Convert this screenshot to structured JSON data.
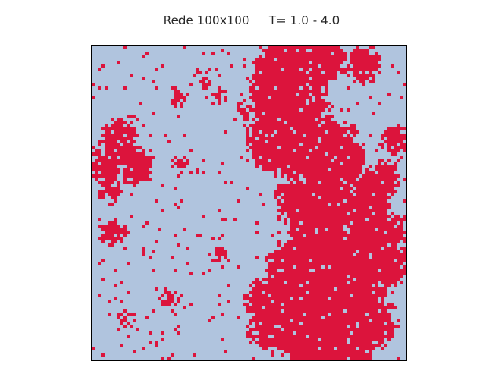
{
  "figure": {
    "title": "Rede 100x100     T= 1.0 - 4.0"
  },
  "lattice": {
    "rows": 100,
    "cols": 100,
    "colors": {
      "spin_up": "#dc143c",
      "spin_down": "#b0c4de",
      "border": "#000000"
    }
  }
}
